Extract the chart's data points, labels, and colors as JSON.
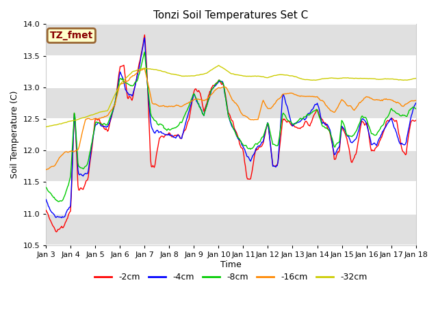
{
  "title": "Tonzi Soil Temperatures Set C",
  "xlabel": "Time",
  "ylabel": "Soil Temperature (C)",
  "ylim": [
    10.5,
    14.0
  ],
  "annotation": "TZ_fmet",
  "annotation_bbox": {
    "boxstyle": "round,pad=0.25",
    "facecolor": "#ffffcc",
    "edgecolor": "#996633",
    "linewidth": 2
  },
  "annotation_color": "#880000",
  "annotation_fontsize": 10,
  "annotation_fontweight": "bold",
  "bg_color": "#ffffff",
  "plot_bg_color": "#ffffff",
  "line_colors": {
    "-2cm": "#ff0000",
    "-4cm": "#0000ff",
    "-8cm": "#00cc00",
    "-16cm": "#ff8800",
    "-32cm": "#cccc00"
  },
  "line_width": 1.0,
  "legend_labels": [
    "-2cm",
    "-4cm",
    "-8cm",
    "-16cm",
    "-32cm"
  ],
  "x_tick_labels": [
    "Jan 3",
    "Jan 4",
    "Jan 5",
    "Jan 6",
    "Jan 7",
    "Jan 8",
    "Jan 9",
    "Jan 10",
    "Jan 11",
    "Jan 12",
    "Jan 13",
    "Jan 14",
    "Jan 15",
    "Jan 16",
    "Jan 17",
    "Jan 18"
  ],
  "band_color": "#e0e0e0",
  "grid_color": "#ffffff",
  "grid_linewidth": 1.5
}
